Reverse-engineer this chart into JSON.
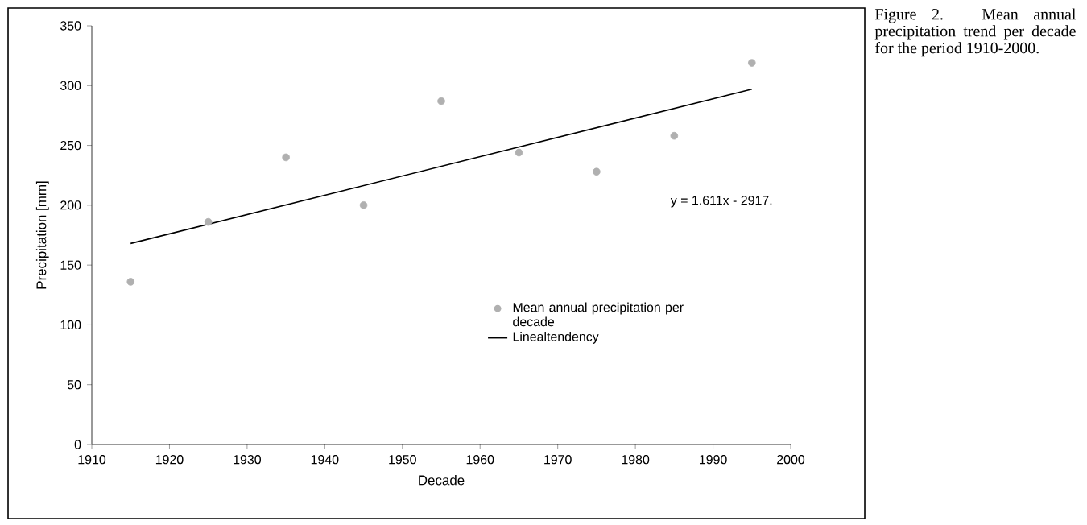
{
  "chart_data": {
    "type": "scatter",
    "title": "Figure 2. Mean annual precipitation trend per decade for the period 1910-2000.",
    "xlabel": "Decade",
    "ylabel": "Precipitation [mm]",
    "x": [
      1915,
      1925,
      1935,
      1945,
      1955,
      1965,
      1975,
      1985,
      1995
    ],
    "series": [
      {
        "name": "Mean annual precipitation per decade",
        "color": "#b0b0b0",
        "marker": "circle",
        "values": [
          136,
          186,
          240,
          200,
          287,
          244,
          228,
          258,
          319
        ]
      },
      {
        "name": "Linealtendency",
        "type": "line",
        "color": "#000000",
        "marker": "none",
        "x": [
          1915,
          1995
        ],
        "values": [
          168,
          297
        ]
      }
    ],
    "annotations": [
      "y = 1.611x - 2917."
    ],
    "xlim": [
      1910,
      2000
    ],
    "xticks": [
      1910,
      1920,
      1930,
      1940,
      1950,
      1960,
      1970,
      1980,
      1990,
      2000
    ],
    "ylim": [
      0,
      350
    ],
    "yticks": [
      0,
      50,
      100,
      150,
      200,
      250,
      300,
      350
    ],
    "grid": false,
    "legend": "right"
  }
}
